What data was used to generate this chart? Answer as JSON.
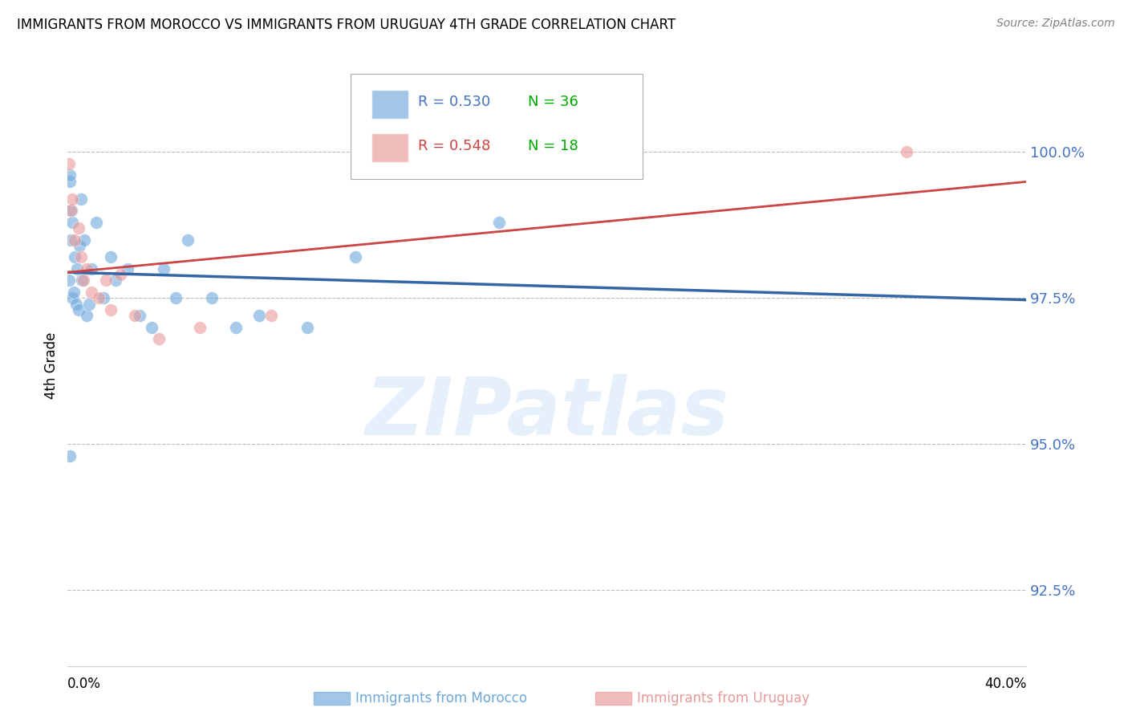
{
  "title": "IMMIGRANTS FROM MOROCCO VS IMMIGRANTS FROM URUGUAY 4TH GRADE CORRELATION CHART",
  "source": "Source: ZipAtlas.com",
  "ylabel": "4th Grade",
  "y_ticks": [
    92.5,
    95.0,
    97.5,
    100.0
  ],
  "y_tick_labels": [
    "92.5%",
    "95.0%",
    "97.5%",
    "100.0%"
  ],
  "x_min": 0.0,
  "x_max": 40.0,
  "y_min": 91.2,
  "y_max": 101.5,
  "morocco_color": "#6fa8dc",
  "uruguay_color": "#ea9999",
  "morocco_R": 0.53,
  "morocco_N": 36,
  "uruguay_R": 0.548,
  "uruguay_N": 18,
  "morocco_line_color": "#3465a4",
  "uruguay_line_color": "#cc4444",
  "watermark_text": "ZIPatlas",
  "morocco_x": [
    0.05,
    0.08,
    0.1,
    0.12,
    0.15,
    0.18,
    0.2,
    0.25,
    0.3,
    0.35,
    0.4,
    0.45,
    0.5,
    0.55,
    0.6,
    0.7,
    0.8,
    0.9,
    1.0,
    1.2,
    1.5,
    1.8,
    2.0,
    2.5,
    3.0,
    3.5,
    4.0,
    4.5,
    5.0,
    6.0,
    7.0,
    8.0,
    10.0,
    12.0,
    18.0,
    0.1
  ],
  "morocco_y": [
    97.8,
    99.5,
    99.6,
    98.5,
    99.0,
    98.8,
    97.5,
    97.6,
    98.2,
    97.4,
    98.0,
    97.3,
    98.4,
    99.2,
    97.8,
    98.5,
    97.2,
    97.4,
    98.0,
    98.8,
    97.5,
    98.2,
    97.8,
    98.0,
    97.2,
    97.0,
    98.0,
    97.5,
    98.5,
    97.5,
    97.0,
    97.2,
    97.0,
    98.2,
    98.8,
    94.8
  ],
  "uruguay_x": [
    0.05,
    0.12,
    0.2,
    0.3,
    0.45,
    0.55,
    0.65,
    0.8,
    1.0,
    1.3,
    1.6,
    1.8,
    2.2,
    2.8,
    3.8,
    5.5,
    8.5,
    35.0
  ],
  "uruguay_y": [
    99.8,
    99.0,
    99.2,
    98.5,
    98.7,
    98.2,
    97.8,
    98.0,
    97.6,
    97.5,
    97.8,
    97.3,
    97.9,
    97.2,
    96.8,
    97.0,
    97.2,
    100.0
  ]
}
